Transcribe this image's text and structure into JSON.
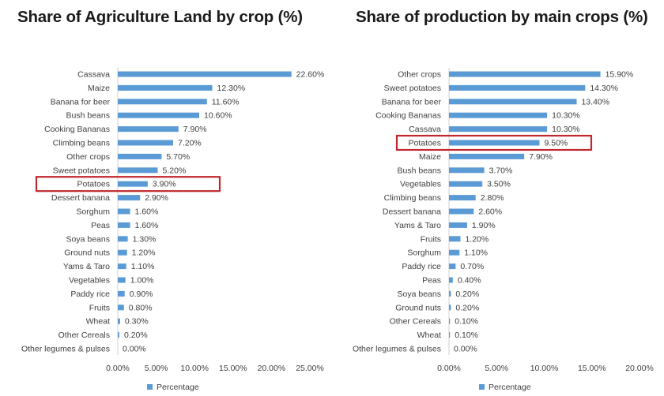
{
  "chart_data": [
    {
      "type": "bar",
      "orientation": "horizontal",
      "title": "Share of Agriculture Land by crop (%)",
      "categories": [
        "Cassava",
        "Maize",
        "Banana for beer",
        "Bush beans",
        "Cooking Bananas",
        "Climbing beans",
        "Other crops",
        "Sweet potatoes",
        "Potatoes",
        "Dessert banana",
        "Sorghum",
        "Peas",
        "Soya beans",
        "Ground nuts",
        "Yams & Taro",
        "Vegetables",
        "Paddy rice",
        "Fruits",
        "Wheat",
        "Other Cereals",
        "Other legumes & pulses"
      ],
      "series": [
        {
          "name": "Percentage",
          "values": [
            22.6,
            12.3,
            11.6,
            10.6,
            7.9,
            7.2,
            5.7,
            5.2,
            3.9,
            2.9,
            1.6,
            1.6,
            1.3,
            1.2,
            1.1,
            1.0,
            0.9,
            0.8,
            0.3,
            0.2,
            0.0
          ],
          "labels": [
            "22.60%",
            "12.30%",
            "11.60%",
            "10.60%",
            "7.90%",
            "7.20%",
            "5.70%",
            "5.20%",
            "3.90%",
            "2.90%",
            "1.60%",
            "1.60%",
            "1.30%",
            "1.20%",
            "1.10%",
            "1.00%",
            "0.90%",
            "0.80%",
            "0.30%",
            "0.20%",
            "0.00%"
          ]
        }
      ],
      "xticks": [
        "0.00%",
        "5.00%",
        "10.00%",
        "15.00%",
        "20.00%",
        "25.00%"
      ],
      "xlim": [
        0,
        25
      ],
      "legend": "bottom",
      "highlight": "Potatoes",
      "highlight_color": "#c0282d",
      "bar_color": "#5b9bd5"
    },
    {
      "type": "bar",
      "orientation": "horizontal",
      "title": "Share of production by main crops (%)",
      "categories": [
        "Other crops",
        "Sweet potatoes",
        "Banana for beer",
        "Cooking Bananas",
        "Cassava",
        "Potatoes",
        "Maize",
        "Bush beans",
        "Vegetables",
        "Climbing beans",
        "Dessert banana",
        "Yams & Taro",
        "Fruits",
        "Sorghum",
        "Paddy rice",
        "Peas",
        "Soya beans",
        "Ground nuts",
        "Other Cereals",
        "Wheat",
        "Other legumes & pulses"
      ],
      "series": [
        {
          "name": "Percentage",
          "values": [
            15.9,
            14.3,
            13.4,
            10.3,
            10.3,
            9.5,
            7.9,
            3.7,
            3.5,
            2.8,
            2.6,
            1.9,
            1.2,
            1.1,
            0.7,
            0.4,
            0.2,
            0.2,
            0.1,
            0.1,
            0.0
          ],
          "labels": [
            "15.90%",
            "14.30%",
            "13.40%",
            "10.30%",
            "10.30%",
            "9.50%",
            "7.90%",
            "3.70%",
            "3.50%",
            "2.80%",
            "2.60%",
            "1.90%",
            "1.20%",
            "1.10%",
            "0.70%",
            "0.40%",
            "0.20%",
            "0.20%",
            "0.10%",
            "0.10%",
            "0.00%"
          ]
        }
      ],
      "xticks": [
        "0.00%",
        "5.00%",
        "10.00%",
        "15.00%",
        "20.00%"
      ],
      "xlim": [
        0,
        20
      ],
      "legend": "bottom",
      "highlight": "Potatoes",
      "highlight_color": "#c0282d",
      "bar_color": "#5b9bd5"
    }
  ]
}
